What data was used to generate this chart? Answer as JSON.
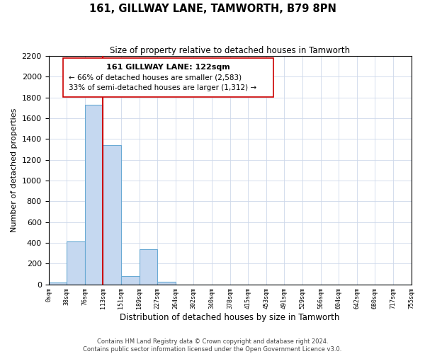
{
  "title": "161, GILLWAY LANE, TAMWORTH, B79 8PN",
  "subtitle": "Size of property relative to detached houses in Tamworth",
  "xlabel": "Distribution of detached houses by size in Tamworth",
  "ylabel": "Number of detached properties",
  "bar_values": [
    20,
    410,
    1730,
    1340,
    80,
    340,
    25,
    0,
    0,
    0,
    0,
    0,
    0,
    0,
    0,
    0,
    0,
    0,
    0,
    0
  ],
  "bar_labels": [
    "0sqm",
    "38sqm",
    "76sqm",
    "113sqm",
    "151sqm",
    "189sqm",
    "227sqm",
    "264sqm",
    "302sqm",
    "340sqm",
    "378sqm",
    "415sqm",
    "453sqm",
    "491sqm",
    "529sqm",
    "566sqm",
    "604sqm",
    "642sqm",
    "680sqm",
    "717sqm",
    "755sqm"
  ],
  "bar_color": "#c5d8f0",
  "bar_edge_color": "#6aaad4",
  "vline_x": 3,
  "vline_color": "#cc0000",
  "ylim": [
    0,
    2200
  ],
  "yticks": [
    0,
    200,
    400,
    600,
    800,
    1000,
    1200,
    1400,
    1600,
    1800,
    2000,
    2200
  ],
  "annotation_title": "161 GILLWAY LANE: 122sqm",
  "annotation_line1": "← 66% of detached houses are smaller (2,583)",
  "annotation_line2": "33% of semi-detached houses are larger (1,312) →",
  "footer1": "Contains HM Land Registry data © Crown copyright and database right 2024.",
  "footer2": "Contains public sector information licensed under the Open Government Licence v3.0.",
  "background_color": "#ffffff",
  "grid_color": "#cdd8ea"
}
